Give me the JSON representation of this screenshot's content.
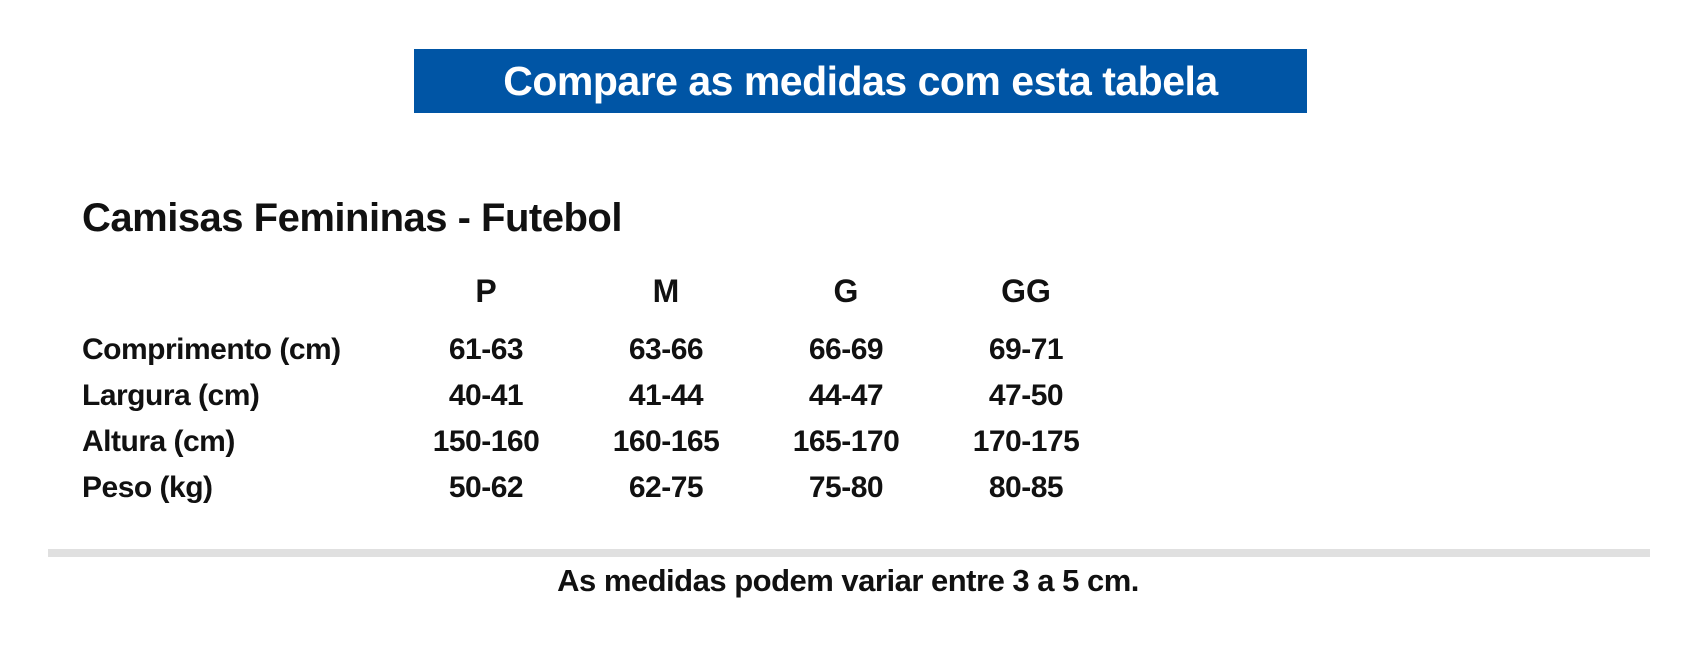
{
  "banner": {
    "text": "Compare as medidas com esta tabela",
    "bg_color": "#0055a5",
    "text_color": "#ffffff"
  },
  "section": {
    "title": "Camisas Femininas - Futebol"
  },
  "size_table": {
    "columns": [
      "P",
      "M",
      "G",
      "GG"
    ],
    "rows": [
      {
        "label": "Comprimento (cm)",
        "values": [
          "61-63",
          "63-66",
          "66-69",
          "69-71"
        ]
      },
      {
        "label": "Largura (cm)",
        "values": [
          "40-41",
          "41-44",
          "44-47",
          "47-50"
        ]
      },
      {
        "label": "Altura (cm)",
        "values": [
          "150-160",
          "160-165",
          "165-170",
          "170-175"
        ]
      },
      {
        "label": "Peso (kg)",
        "values": [
          "50-62",
          "62-75",
          "75-80",
          "80-85"
        ]
      }
    ]
  },
  "footer": {
    "note": "As medidas podem variar entre 3 a 5 cm."
  }
}
